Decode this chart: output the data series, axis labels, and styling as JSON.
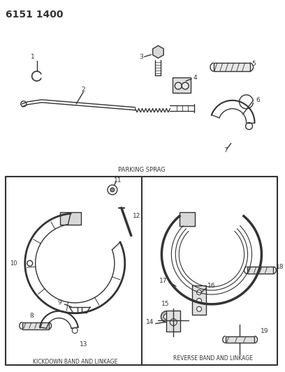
{
  "title_code": "6151 1400",
  "background_color": "#ffffff",
  "line_color": "#333333",
  "text_color": "#333333",
  "section1_label": "PARKING SPRAG",
  "section2_label": "KICKDOWN BAND AND LINKAGE",
  "section3_label": "REVERSE BAND AND LINKAGE",
  "fig_width": 4.08,
  "fig_height": 5.33,
  "dpi": 100
}
